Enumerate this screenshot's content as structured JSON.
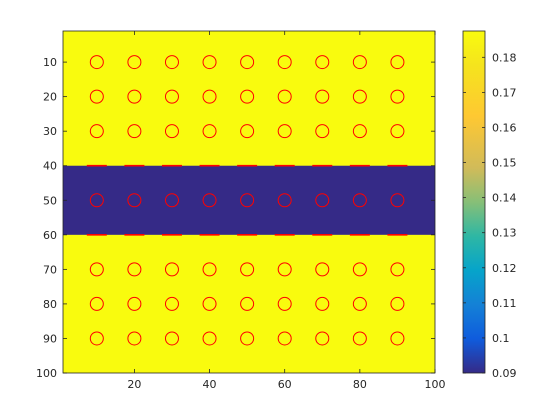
{
  "chart_data": {
    "type": "heatmap",
    "title": "",
    "xlabel": "",
    "ylabel": "",
    "xlim": [
      1,
      100
    ],
    "ylim": [
      1,
      100
    ],
    "y_direction": "reversed",
    "x_ticks": [
      20,
      40,
      60,
      80,
      100
    ],
    "y_ticks": [
      10,
      20,
      30,
      40,
      50,
      60,
      70,
      80,
      90,
      100
    ],
    "regions": [
      {
        "rows": [
          1,
          40
        ],
        "value": 0.1875
      },
      {
        "rows": [
          40,
          60
        ],
        "value": 0.09
      },
      {
        "rows": [
          60,
          100
        ],
        "value": 0.1875
      }
    ],
    "overlay_markers": {
      "shape": "circle",
      "color": "#ff0000",
      "x": [
        10,
        20,
        30,
        40,
        50,
        60,
        70,
        80,
        90
      ],
      "y": [
        10,
        20,
        30,
        50,
        70,
        80,
        90
      ]
    },
    "interface_marks": {
      "shape": "dash",
      "color": "#ff0000",
      "x": [
        10,
        20,
        30,
        40,
        50,
        60,
        70,
        80,
        90
      ],
      "y": [
        40,
        60
      ]
    },
    "colorbar": {
      "colormap": "parula",
      "min": 0.09,
      "max": 0.1875,
      "ticks": [
        0.09,
        0.1,
        0.11,
        0.12,
        0.13,
        0.14,
        0.15,
        0.16,
        0.17,
        0.18
      ],
      "tick_labels": [
        "0.09",
        "0.1",
        "0.11",
        "0.12",
        "0.13",
        "0.14",
        "0.15",
        "0.16",
        "0.17",
        "0.18"
      ],
      "position": "right"
    },
    "colors": {
      "high": "#f9fb0e",
      "low": "#352a87",
      "marker": "#ff0000"
    }
  }
}
